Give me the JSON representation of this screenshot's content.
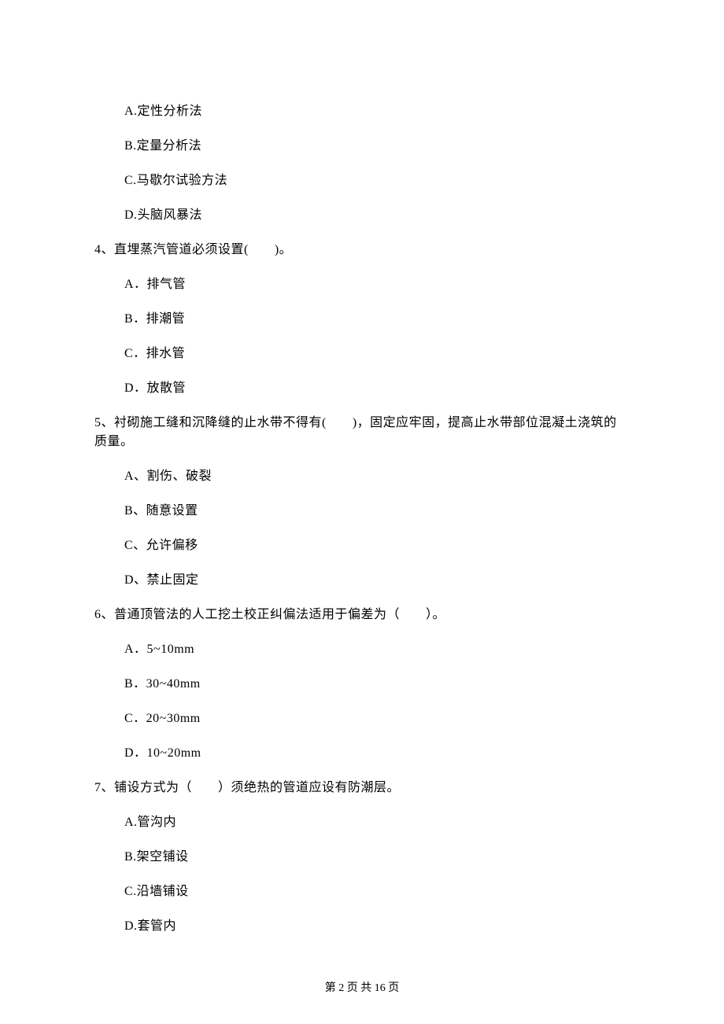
{
  "q3": {
    "options": {
      "a": "A.定性分析法",
      "b": "B.定量分析法",
      "c": "C.马歇尔试验方法",
      "d": "D.头脑风暴法"
    }
  },
  "q4": {
    "stem": "4、直埋蒸汽管道必须设置(　　)。",
    "options": {
      "a": "A．排气管",
      "b": "B．排潮管",
      "c": "C．排水管",
      "d": "D．放散管"
    }
  },
  "q5": {
    "stem": "5、衬砌施工缝和沉降缝的止水带不得有(　　)，固定应牢固，提高止水带部位混凝土浇筑的质量。",
    "options": {
      "a": "A、割伤、破裂",
      "b": "B、随意设置",
      "c": "C、允许偏移",
      "d": "D、禁止固定"
    }
  },
  "q6": {
    "stem": "6、普通顶管法的人工挖土校正纠偏法适用于偏差为（　　）。",
    "options": {
      "a": "A．5~10mm",
      "b": "B．30~40mm",
      "c": "C．20~30mm",
      "d": "D．10~20mm"
    }
  },
  "q7": {
    "stem": "7、铺设方式为（　　）须绝热的管道应设有防潮层。",
    "options": {
      "a": "A.管沟内",
      "b": "B.架空铺设",
      "c": "C.沿墙铺设",
      "d": "D.套管内"
    }
  },
  "footer": "第 2 页 共 16 页"
}
